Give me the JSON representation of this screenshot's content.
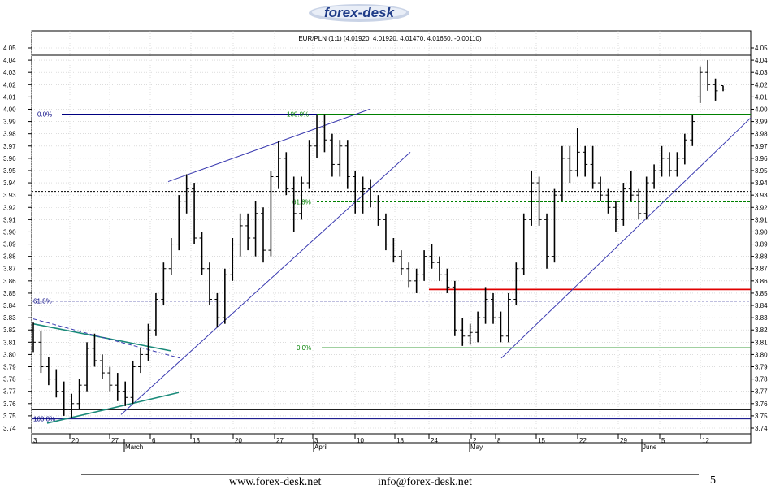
{
  "header": {
    "logo_text": "forex-desk"
  },
  "chart_data": {
    "type": "candlestick",
    "title": "EUR/PLN (1:1) (4.01920, 4.01920, 4.01470, 4.01650, -0.00110)",
    "ylim": [
      3.74,
      4.05
    ],
    "y_ticks": [
      "4.05",
      "4.04",
      "4.03",
      "4.02",
      "4.01",
      "4.00",
      "3.99",
      "3.98",
      "3.97",
      "3.96",
      "3.95",
      "3.94",
      "3.93",
      "3.92",
      "3.91",
      "3.90",
      "3.89",
      "3.88",
      "3.87",
      "3.86",
      "3.85",
      "3.84",
      "3.83",
      "3.82",
      "3.81",
      "3.80",
      "3.79",
      "3.78",
      "3.77",
      "3.76",
      "3.75",
      "3.74"
    ],
    "x_ticks": [
      "3",
      "20",
      "27",
      "6",
      "13",
      "20",
      "27",
      "3",
      "10",
      "18",
      "24",
      "2",
      "8",
      "15",
      "22",
      "29",
      "5",
      "12"
    ],
    "month_labels": [
      "March",
      "April",
      "May",
      "June"
    ],
    "last_close": 4.0165,
    "horizontal_levels": [
      {
        "value": 4.044,
        "color": "#000000",
        "style": "solid"
      },
      {
        "value": 3.996,
        "color": "#000080",
        "style": "solid",
        "label": "0.0%"
      },
      {
        "value": 3.996,
        "color": "#008000",
        "style": "solid",
        "label": "100.0%"
      },
      {
        "value": 3.933,
        "color": "#000000",
        "style": "dotted"
      },
      {
        "value": 3.9245,
        "color": "#008000",
        "style": "dashed",
        "label": "61.8%"
      },
      {
        "value": 3.853,
        "color": "#e00000",
        "style": "solid"
      },
      {
        "value": 3.8435,
        "color": "#000080",
        "style": "dashed",
        "label": "61.8%"
      },
      {
        "value": 3.8055,
        "color": "#008000",
        "style": "solid",
        "label": "0.0%"
      },
      {
        "value": 3.755,
        "color": "#000000",
        "style": "solid"
      },
      {
        "value": 3.7475,
        "color": "#000080",
        "style": "solid",
        "label": "100.0%"
      }
    ],
    "series": [
      {
        "date": "2007-02-13",
        "open": 3.82,
        "high": 3.826,
        "low": 3.802,
        "close": 3.81
      },
      {
        "date": "2007-02-14",
        "open": 3.81,
        "high": 3.819,
        "low": 3.785,
        "close": 3.79
      },
      {
        "date": "2007-02-15",
        "open": 3.79,
        "high": 3.798,
        "low": 3.775,
        "close": 3.78
      },
      {
        "date": "2007-02-16",
        "open": 3.78,
        "high": 3.788,
        "low": 3.765,
        "close": 3.77
      },
      {
        "date": "2007-02-19",
        "open": 3.77,
        "high": 3.778,
        "low": 3.75,
        "close": 3.755
      },
      {
        "date": "2007-02-20",
        "open": 3.755,
        "high": 3.768,
        "low": 3.748,
        "close": 3.76
      },
      {
        "date": "2007-02-21",
        "open": 3.76,
        "high": 3.78,
        "low": 3.755,
        "close": 3.775
      },
      {
        "date": "2007-02-22",
        "open": 3.775,
        "high": 3.81,
        "low": 3.77,
        "close": 3.805
      },
      {
        "date": "2007-02-23",
        "open": 3.805,
        "high": 3.817,
        "low": 3.79,
        "close": 3.795
      },
      {
        "date": "2007-02-26",
        "open": 3.795,
        "high": 3.8,
        "low": 3.78,
        "close": 3.785
      },
      {
        "date": "2007-02-27",
        "open": 3.785,
        "high": 3.79,
        "low": 3.77,
        "close": 3.775
      },
      {
        "date": "2007-02-28",
        "open": 3.775,
        "high": 3.785,
        "low": 3.762,
        "close": 3.77
      },
      {
        "date": "2007-03-01",
        "open": 3.77,
        "high": 3.778,
        "low": 3.758,
        "close": 3.765
      },
      {
        "date": "2007-03-02",
        "open": 3.765,
        "high": 3.795,
        "low": 3.76,
        "close": 3.79
      },
      {
        "date": "2007-03-05",
        "open": 3.79,
        "high": 3.805,
        "low": 3.785,
        "close": 3.8
      },
      {
        "date": "2007-03-06",
        "open": 3.8,
        "high": 3.825,
        "low": 3.795,
        "close": 3.82
      },
      {
        "date": "2007-03-07",
        "open": 3.82,
        "high": 3.85,
        "low": 3.815,
        "close": 3.845
      },
      {
        "date": "2007-03-08",
        "open": 3.845,
        "high": 3.875,
        "low": 3.84,
        "close": 3.87
      },
      {
        "date": "2007-03-09",
        "open": 3.87,
        "high": 3.895,
        "low": 3.865,
        "close": 3.89
      },
      {
        "date": "2007-03-12",
        "open": 3.89,
        "high": 3.93,
        "low": 3.885,
        "close": 3.925
      },
      {
        "date": "2007-03-13",
        "open": 3.925,
        "high": 3.947,
        "low": 3.915,
        "close": 3.935
      },
      {
        "date": "2007-03-14",
        "open": 3.935,
        "high": 3.94,
        "low": 3.89,
        "close": 3.895
      },
      {
        "date": "2007-03-15",
        "open": 3.895,
        "high": 3.9,
        "low": 3.865,
        "close": 3.87
      },
      {
        "date": "2007-03-16",
        "open": 3.87,
        "high": 3.875,
        "low": 3.84,
        "close": 3.845
      },
      {
        "date": "2007-03-19",
        "open": 3.845,
        "high": 3.85,
        "low": 3.822,
        "close": 3.83
      },
      {
        "date": "2007-03-20",
        "open": 3.83,
        "high": 3.87,
        "low": 3.825,
        "close": 3.865
      },
      {
        "date": "2007-03-21",
        "open": 3.865,
        "high": 3.895,
        "low": 3.86,
        "close": 3.89
      },
      {
        "date": "2007-03-22",
        "open": 3.89,
        "high": 3.915,
        "low": 3.88,
        "close": 3.905
      },
      {
        "date": "2007-03-23",
        "open": 3.905,
        "high": 3.915,
        "low": 3.885,
        "close": 3.895
      },
      {
        "date": "2007-03-26",
        "open": 3.895,
        "high": 3.925,
        "low": 3.88,
        "close": 3.915
      },
      {
        "date": "2007-03-27",
        "open": 3.915,
        "high": 3.92,
        "low": 3.875,
        "close": 3.885
      },
      {
        "date": "2007-03-28",
        "open": 3.885,
        "high": 3.95,
        "low": 3.88,
        "close": 3.945
      },
      {
        "date": "2007-03-29",
        "open": 3.945,
        "high": 3.974,
        "low": 3.935,
        "close": 3.96
      },
      {
        "date": "2007-03-30",
        "open": 3.96,
        "high": 3.965,
        "low": 3.93,
        "close": 3.935
      },
      {
        "date": "2007-04-02",
        "open": 3.935,
        "high": 3.945,
        "low": 3.9,
        "close": 3.915
      },
      {
        "date": "2007-04-03",
        "open": 3.915,
        "high": 3.945,
        "low": 3.91,
        "close": 3.94
      },
      {
        "date": "2007-04-04",
        "open": 3.94,
        "high": 3.975,
        "low": 3.935,
        "close": 3.97
      },
      {
        "date": "2007-04-05",
        "open": 3.97,
        "high": 3.995,
        "low": 3.96,
        "close": 3.985
      },
      {
        "date": "2007-04-06",
        "open": 3.985,
        "high": 3.996,
        "low": 3.965,
        "close": 3.975
      },
      {
        "date": "2007-04-09",
        "open": 3.975,
        "high": 3.98,
        "low": 3.945,
        "close": 3.955
      },
      {
        "date": "2007-04-10",
        "open": 3.955,
        "high": 3.975,
        "low": 3.945,
        "close": 3.97
      },
      {
        "date": "2007-04-11",
        "open": 3.97,
        "high": 3.975,
        "low": 3.935,
        "close": 3.945
      },
      {
        "date": "2007-04-12",
        "open": 3.945,
        "high": 3.95,
        "low": 3.915,
        "close": 3.925
      },
      {
        "date": "2007-04-13",
        "open": 3.925,
        "high": 3.945,
        "low": 3.915,
        "close": 3.935
      },
      {
        "date": "2007-04-16",
        "open": 3.935,
        "high": 3.943,
        "low": 3.92,
        "close": 3.925
      },
      {
        "date": "2007-04-17",
        "open": 3.925,
        "high": 3.93,
        "low": 3.905,
        "close": 3.91
      },
      {
        "date": "2007-04-18",
        "open": 3.91,
        "high": 3.915,
        "low": 3.885,
        "close": 3.89
      },
      {
        "date": "2007-04-19",
        "open": 3.89,
        "high": 3.895,
        "low": 3.875,
        "close": 3.88
      },
      {
        "date": "2007-04-20",
        "open": 3.88,
        "high": 3.885,
        "low": 3.865,
        "close": 3.87
      },
      {
        "date": "2007-04-23",
        "open": 3.87,
        "high": 3.875,
        "low": 3.855,
        "close": 3.86
      },
      {
        "date": "2007-04-24",
        "open": 3.86,
        "high": 3.87,
        "low": 3.85,
        "close": 3.865
      },
      {
        "date": "2007-04-25",
        "open": 3.865,
        "high": 3.885,
        "low": 3.86,
        "close": 3.88
      },
      {
        "date": "2007-04-26",
        "open": 3.88,
        "high": 3.89,
        "low": 3.87,
        "close": 3.875
      },
      {
        "date": "2007-04-27",
        "open": 3.875,
        "high": 3.88,
        "low": 3.86,
        "close": 3.865
      },
      {
        "date": "2007-04-30",
        "open": 3.865,
        "high": 3.87,
        "low": 3.85,
        "close": 3.855
      },
      {
        "date": "2007-05-02",
        "open": 3.855,
        "high": 3.86,
        "low": 3.815,
        "close": 3.82
      },
      {
        "date": "2007-05-03",
        "open": 3.82,
        "high": 3.83,
        "low": 3.807,
        "close": 3.815
      },
      {
        "date": "2007-05-04",
        "open": 3.815,
        "high": 3.825,
        "low": 3.808,
        "close": 3.818
      },
      {
        "date": "2007-05-07",
        "open": 3.818,
        "high": 3.835,
        "low": 3.81,
        "close": 3.83
      },
      {
        "date": "2007-05-08",
        "open": 3.83,
        "high": 3.855,
        "low": 3.825,
        "close": 3.845
      },
      {
        "date": "2007-05-09",
        "open": 3.845,
        "high": 3.85,
        "low": 3.825,
        "close": 3.83
      },
      {
        "date": "2007-05-10",
        "open": 3.83,
        "high": 3.835,
        "low": 3.81,
        "close": 3.815
      },
      {
        "date": "2007-05-11",
        "open": 3.815,
        "high": 3.85,
        "low": 3.81,
        "close": 3.845
      },
      {
        "date": "2007-05-14",
        "open": 3.845,
        "high": 3.875,
        "low": 3.84,
        "close": 3.87
      },
      {
        "date": "2007-05-15",
        "open": 3.87,
        "high": 3.915,
        "low": 3.865,
        "close": 3.91
      },
      {
        "date": "2007-05-16",
        "open": 3.91,
        "high": 3.95,
        "low": 3.905,
        "close": 3.94
      },
      {
        "date": "2007-05-17",
        "open": 3.94,
        "high": 3.945,
        "low": 3.905,
        "close": 3.91
      },
      {
        "date": "2007-05-18",
        "open": 3.91,
        "high": 3.915,
        "low": 3.87,
        "close": 3.88
      },
      {
        "date": "2007-05-21",
        "open": 3.88,
        "high": 3.935,
        "low": 3.875,
        "close": 3.93
      },
      {
        "date": "2007-05-22",
        "open": 3.93,
        "high": 3.97,
        "low": 3.925,
        "close": 3.96
      },
      {
        "date": "2007-05-23",
        "open": 3.96,
        "high": 3.97,
        "low": 3.94,
        "close": 3.95
      },
      {
        "date": "2007-05-24",
        "open": 3.95,
        "high": 3.985,
        "low": 3.945,
        "close": 3.965
      },
      {
        "date": "2007-05-25",
        "open": 3.965,
        "high": 3.97,
        "low": 3.945,
        "close": 3.955
      },
      {
        "date": "2007-05-28",
        "open": 3.955,
        "high": 3.97,
        "low": 3.935,
        "close": 3.94
      },
      {
        "date": "2007-05-29",
        "open": 3.94,
        "high": 3.945,
        "low": 3.925,
        "close": 3.93
      },
      {
        "date": "2007-05-30",
        "open": 3.93,
        "high": 3.935,
        "low": 3.915,
        "close": 3.92
      },
      {
        "date": "2007-05-31",
        "open": 3.92,
        "high": 3.925,
        "low": 3.9,
        "close": 3.91
      },
      {
        "date": "2007-06-01",
        "open": 3.91,
        "high": 3.94,
        "low": 3.905,
        "close": 3.935
      },
      {
        "date": "2007-06-04",
        "open": 3.935,
        "high": 3.95,
        "low": 3.925,
        "close": 3.93
      },
      {
        "date": "2007-06-05",
        "open": 3.93,
        "high": 3.935,
        "low": 3.91,
        "close": 3.915
      },
      {
        "date": "2007-06-06",
        "open": 3.915,
        "high": 3.945,
        "low": 3.91,
        "close": 3.94
      },
      {
        "date": "2007-06-07",
        "open": 3.94,
        "high": 3.955,
        "low": 3.935,
        "close": 3.95
      },
      {
        "date": "2007-06-08",
        "open": 3.95,
        "high": 3.97,
        "low": 3.945,
        "close": 3.96
      },
      {
        "date": "2007-06-11",
        "open": 3.96,
        "high": 3.965,
        "low": 3.945,
        "close": 3.95
      },
      {
        "date": "2007-06-12",
        "open": 3.95,
        "high": 3.965,
        "low": 3.945,
        "close": 3.96
      },
      {
        "date": "2007-06-13",
        "open": 3.96,
        "high": 3.98,
        "low": 3.955,
        "close": 3.975
      },
      {
        "date": "2007-06-14",
        "open": 3.975,
        "high": 3.995,
        "low": 3.97,
        "close": 3.99
      },
      {
        "date": "2007-06-15",
        "open": 4.01,
        "high": 4.035,
        "low": 4.005,
        "close": 4.03
      },
      {
        "date": "2007-06-18",
        "open": 4.03,
        "high": 4.04,
        "low": 4.015,
        "close": 4.02
      },
      {
        "date": "2007-06-19",
        "open": 4.02,
        "high": 4.025,
        "low": 4.007,
        "close": 4.015
      },
      {
        "date": "2007-06-20",
        "open": 4.0192,
        "high": 4.0192,
        "low": 4.0147,
        "close": 4.0165
      }
    ]
  },
  "footer": {
    "site": "www.forex-desk.net",
    "separator": "|",
    "email": "info@forex-desk.net",
    "page_number": "5"
  }
}
